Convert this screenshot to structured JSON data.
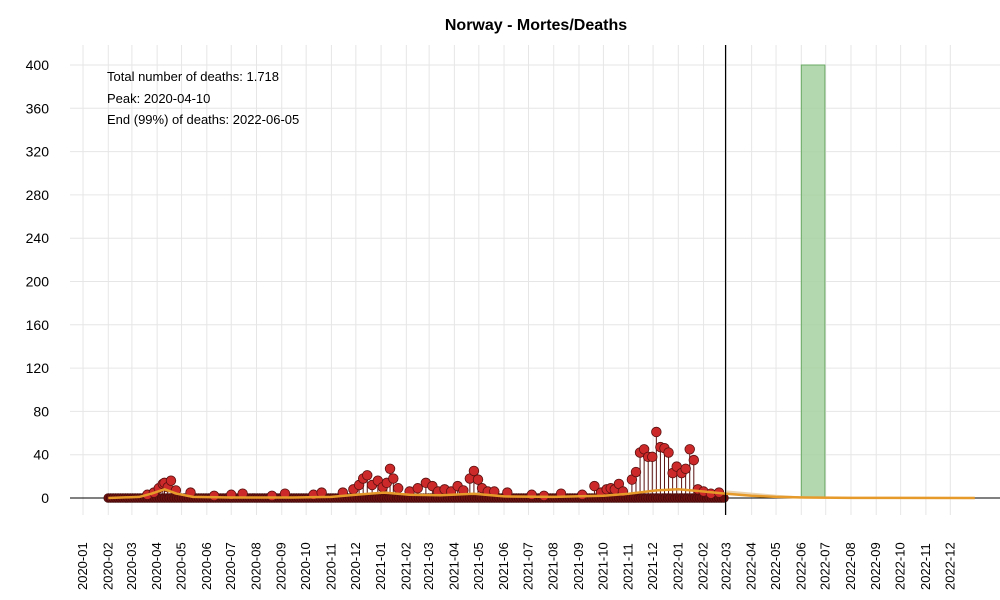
{
  "chart_data": {
    "type": "scatter",
    "title": "Norway - Mortes/Deaths",
    "xlabel": "",
    "ylabel": "",
    "ylim": [
      0,
      400
    ],
    "yticks": [
      0,
      40,
      80,
      120,
      160,
      200,
      240,
      280,
      320,
      360,
      400
    ],
    "xlim": [
      "2019-12-16",
      "2023-01-31"
    ],
    "xticks": [
      "2020-01",
      "2020-02",
      "2020-03",
      "2020-04",
      "2020-05",
      "2020-06",
      "2020-07",
      "2020-08",
      "2020-09",
      "2020-10",
      "2020-11",
      "2020-12",
      "2021-01",
      "2021-02",
      "2021-03",
      "2021-04",
      "2021-05",
      "2021-06",
      "2021-07",
      "2021-08",
      "2021-09",
      "2021-10",
      "2021-11",
      "2021-12",
      "2022-01",
      "2022-02",
      "2022-03",
      "2022-04",
      "2022-05",
      "2022-06",
      "2022-07",
      "2022-08",
      "2022-09",
      "2022-10",
      "2022-11",
      "2022-12"
    ],
    "grid": true,
    "annotations": [
      {
        "text": "Total number of deaths: 1.718",
        "color": "#000000"
      },
      {
        "text": "Peak: 2020-04-10",
        "color": "#b2182b"
      },
      {
        "text": "End (99%) of deaths: 2022-06-05",
        "color": "#6aaa64"
      }
    ],
    "last_observed_date": "2022-02-28",
    "end_band": {
      "start": "2022-06-01",
      "end": "2022-06-30",
      "color": "#a6d0a0"
    },
    "observed_daily_deaths": [
      {
        "x": "2020-03-20",
        "y": 3
      },
      {
        "x": "2020-03-28",
        "y": 5
      },
      {
        "x": "2020-04-03",
        "y": 9
      },
      {
        "x": "2020-04-08",
        "y": 13
      },
      {
        "x": "2020-04-10",
        "y": 14
      },
      {
        "x": "2020-04-14",
        "y": 10
      },
      {
        "x": "2020-04-18",
        "y": 16
      },
      {
        "x": "2020-04-24",
        "y": 7
      },
      {
        "x": "2020-05-12",
        "y": 5
      },
      {
        "x": "2020-06-10",
        "y": 2
      },
      {
        "x": "2020-07-01",
        "y": 3
      },
      {
        "x": "2020-07-15",
        "y": 4
      },
      {
        "x": "2020-08-20",
        "y": 2
      },
      {
        "x": "2020-09-05",
        "y": 4
      },
      {
        "x": "2020-10-10",
        "y": 3
      },
      {
        "x": "2020-10-20",
        "y": 5
      },
      {
        "x": "2020-11-15",
        "y": 5
      },
      {
        "x": "2020-11-28",
        "y": 8
      },
      {
        "x": "2020-12-05",
        "y": 12
      },
      {
        "x": "2020-12-10",
        "y": 18
      },
      {
        "x": "2020-12-15",
        "y": 21
      },
      {
        "x": "2020-12-21",
        "y": 12
      },
      {
        "x": "2020-12-28",
        "y": 16
      },
      {
        "x": "2021-01-03",
        "y": 10
      },
      {
        "x": "2021-01-08",
        "y": 14
      },
      {
        "x": "2021-01-12",
        "y": 27
      },
      {
        "x": "2021-01-16",
        "y": 18
      },
      {
        "x": "2021-01-22",
        "y": 9
      },
      {
        "x": "2021-02-05",
        "y": 6
      },
      {
        "x": "2021-02-15",
        "y": 9
      },
      {
        "x": "2021-02-25",
        "y": 14
      },
      {
        "x": "2021-03-05",
        "y": 11
      },
      {
        "x": "2021-03-12",
        "y": 6
      },
      {
        "x": "2021-03-20",
        "y": 8
      },
      {
        "x": "2021-03-28",
        "y": 6
      },
      {
        "x": "2021-04-05",
        "y": 11
      },
      {
        "x": "2021-04-12",
        "y": 7
      },
      {
        "x": "2021-04-20",
        "y": 18
      },
      {
        "x": "2021-04-25",
        "y": 25
      },
      {
        "x": "2021-04-30",
        "y": 17
      },
      {
        "x": "2021-05-05",
        "y": 9
      },
      {
        "x": "2021-05-12",
        "y": 6
      },
      {
        "x": "2021-05-20",
        "y": 6
      },
      {
        "x": "2021-06-05",
        "y": 5
      },
      {
        "x": "2021-07-05",
        "y": 3
      },
      {
        "x": "2021-07-20",
        "y": 2
      },
      {
        "x": "2021-08-10",
        "y": 4
      },
      {
        "x": "2021-09-05",
        "y": 3
      },
      {
        "x": "2021-09-20",
        "y": 11
      },
      {
        "x": "2021-09-28",
        "y": 5
      },
      {
        "x": "2021-10-05",
        "y": 8
      },
      {
        "x": "2021-10-10",
        "y": 9
      },
      {
        "x": "2021-10-15",
        "y": 8
      },
      {
        "x": "2021-10-20",
        "y": 13
      },
      {
        "x": "2021-10-25",
        "y": 6
      },
      {
        "x": "2021-11-05",
        "y": 17
      },
      {
        "x": "2021-11-10",
        "y": 24
      },
      {
        "x": "2021-11-15",
        "y": 42
      },
      {
        "x": "2021-11-20",
        "y": 45
      },
      {
        "x": "2021-11-25",
        "y": 38
      },
      {
        "x": "2021-11-30",
        "y": 38
      },
      {
        "x": "2021-12-05",
        "y": 61
      },
      {
        "x": "2021-12-10",
        "y": 47
      },
      {
        "x": "2021-12-15",
        "y": 46
      },
      {
        "x": "2021-12-20",
        "y": 42
      },
      {
        "x": "2021-12-25",
        "y": 23
      },
      {
        "x": "2021-12-30",
        "y": 29
      },
      {
        "x": "2022-01-05",
        "y": 23
      },
      {
        "x": "2022-01-10",
        "y": 27
      },
      {
        "x": "2022-01-15",
        "y": 45
      },
      {
        "x": "2022-01-20",
        "y": 35
      },
      {
        "x": "2022-01-25",
        "y": 8
      },
      {
        "x": "2022-02-01",
        "y": 6
      },
      {
        "x": "2022-02-10",
        "y": 4
      },
      {
        "x": "2022-02-20",
        "y": 5
      }
    ],
    "fitted_curve": [
      {
        "x": "2020-02-01",
        "y": 0
      },
      {
        "x": "2020-03-10",
        "y": 1
      },
      {
        "x": "2020-03-25",
        "y": 4
      },
      {
        "x": "2020-04-10",
        "y": 8
      },
      {
        "x": "2020-04-25",
        "y": 4
      },
      {
        "x": "2020-05-15",
        "y": 1
      },
      {
        "x": "2020-07-01",
        "y": 0.5
      },
      {
        "x": "2020-09-15",
        "y": 0.5
      },
      {
        "x": "2020-11-01",
        "y": 1
      },
      {
        "x": "2020-12-01",
        "y": 3
      },
      {
        "x": "2021-01-05",
        "y": 5
      },
      {
        "x": "2021-02-05",
        "y": 3
      },
      {
        "x": "2021-03-15",
        "y": 2.5
      },
      {
        "x": "2021-04-25",
        "y": 4
      },
      {
        "x": "2021-06-01",
        "y": 1.5
      },
      {
        "x": "2021-08-01",
        "y": 1
      },
      {
        "x": "2021-10-01",
        "y": 2
      },
      {
        "x": "2021-11-01",
        "y": 4
      },
      {
        "x": "2021-12-05",
        "y": 7
      },
      {
        "x": "2022-01-01",
        "y": 8
      },
      {
        "x": "2022-02-01",
        "y": 6
      },
      {
        "x": "2022-03-01",
        "y": 4
      },
      {
        "x": "2022-04-01",
        "y": 2
      },
      {
        "x": "2022-05-01",
        "y": 1
      },
      {
        "x": "2022-06-05",
        "y": 0.5
      },
      {
        "x": "2022-08-01",
        "y": 0.1
      },
      {
        "x": "2022-12-31",
        "y": 0
      }
    ],
    "forecast_band": [
      {
        "x": "2022-03-01",
        "lo": 3,
        "hi": 7
      },
      {
        "x": "2022-04-01",
        "lo": 1.5,
        "hi": 5
      },
      {
        "x": "2022-05-01",
        "lo": 0.5,
        "hi": 3
      },
      {
        "x": "2022-06-01",
        "lo": 0.2,
        "hi": 1.5
      },
      {
        "x": "2022-07-01",
        "lo": 0,
        "hi": 0.5
      }
    ],
    "colors": {
      "points": "#cc2a2a",
      "point_stroke": "#5a0f0f",
      "baseline_points": "#6b1010",
      "fitted": "#e69a2a",
      "forecast_band": "#e8cfa8",
      "end_band": "#a6d0a0",
      "end_band_stroke": "#6aaa64",
      "grid": "#e6e6e6"
    }
  }
}
